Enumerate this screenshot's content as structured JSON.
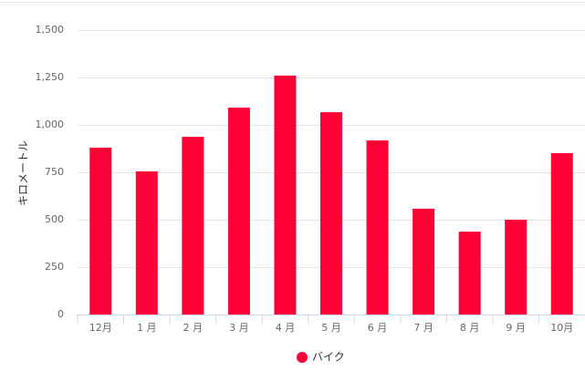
{
  "chart_data": {
    "type": "bar",
    "y_label": "キロメートル",
    "categories": [
      "12月",
      "1 月",
      "2 月",
      "3 月",
      "4 月",
      "5 月",
      "6 月",
      "7 月",
      "8 月",
      "9 月",
      "10月"
    ],
    "series": [
      {
        "name": "バイク",
        "color": "#ff0036",
        "values": [
          880,
          755,
          937,
          1091,
          1260,
          1067,
          918,
          558,
          437,
          500,
          851
        ]
      }
    ],
    "ylim": [
      0,
      1500
    ],
    "yticks": [
      0,
      250,
      500,
      750,
      {
        "value": 1000,
        "label": "1,000"
      },
      {
        "value": 1250,
        "label": "1,250"
      },
      {
        "value": 1500,
        "label": "1,500"
      }
    ],
    "grid": true
  }
}
